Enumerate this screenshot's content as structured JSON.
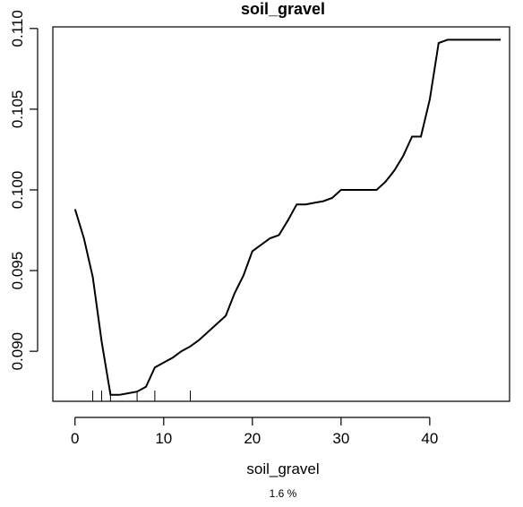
{
  "chart_data": {
    "type": "line",
    "title": "soil_gravel",
    "xlabel": "soil_gravel",
    "subtitle": "1.6 %",
    "xlim": [
      -2.5,
      49
    ],
    "ylim": [
      0.0869,
      0.1101
    ],
    "x_ticks": [
      0,
      10,
      20,
      30,
      40
    ],
    "x_tick_labels": [
      "0",
      "10",
      "20",
      "30",
      "40"
    ],
    "y_ticks": [
      0.09,
      0.095,
      0.1,
      0.105,
      0.11
    ],
    "y_tick_labels": [
      "0.090",
      "0.095",
      "0.100",
      "0.105",
      "0.110"
    ],
    "grid": false,
    "line_color": "#000000",
    "series": [
      {
        "x": [
          0,
          1,
          2,
          3,
          4,
          5,
          6,
          7,
          8,
          9,
          10,
          11,
          12,
          13,
          14,
          15,
          16,
          17,
          18,
          19,
          20,
          21,
          22,
          23,
          24,
          25,
          26,
          27,
          28,
          29,
          30,
          31,
          32,
          33,
          34,
          35,
          36,
          37,
          38,
          39,
          40,
          41,
          42,
          43,
          44,
          45,
          46,
          47,
          48
        ],
        "values": [
          0.0988,
          0.097,
          0.0946,
          0.0906,
          0.0873,
          0.0873,
          0.0874,
          0.0875,
          0.0878,
          0.089,
          0.0893,
          0.0896,
          0.09,
          0.0903,
          0.0907,
          0.0912,
          0.0917,
          0.0922,
          0.0936,
          0.0947,
          0.0962,
          0.0966,
          0.097,
          0.0972,
          0.0981,
          0.0991,
          0.0991,
          0.0992,
          0.0993,
          0.0995,
          0.1,
          0.1,
          0.1,
          0.1,
          0.1,
          0.1005,
          0.1012,
          0.1021,
          0.1033,
          0.1033,
          0.1056,
          0.1091,
          0.1093,
          0.1093,
          0.1093,
          0.1093,
          0.1093,
          0.1093,
          0.1093
        ]
      }
    ],
    "rug_x": [
      2,
      3,
      4,
      7,
      9,
      13
    ]
  }
}
